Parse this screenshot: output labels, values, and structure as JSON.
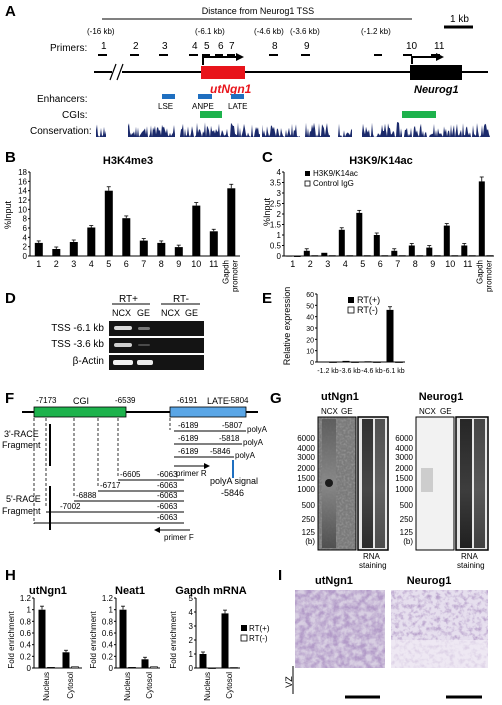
{
  "panels": {
    "A": {
      "letter": "A",
      "distance_title": "Distance from Neurog1 TSS",
      "distance_labels": [
        "(-16 kb)",
        "(-6.1 kb)",
        "(-4.6 kb)",
        "(-3.6 kb)",
        "(-1.2 kb)"
      ],
      "scale_bar": "1 kb",
      "primers_label": "Primers:",
      "primer_numbers": [
        "1",
        "2",
        "3",
        "4",
        "5",
        "6",
        "7",
        "8",
        "9",
        "10",
        "11"
      ],
      "gene_utngn1": "utNgn1",
      "gene_neurog1": "Neurog1",
      "enhancers_label": "Enhancers:",
      "enhancer_names": [
        "LSE",
        "ANPE",
        "LATE"
      ],
      "cgis_label": "CGIs:",
      "conservation_label": "Conservation:",
      "colors": {
        "utngn1": "#e8141b",
        "enhancer": "#1f6fc0",
        "cgi": "#1db24c",
        "conservation": "#1b2a6b"
      }
    },
    "B": {
      "letter": "B",
      "title": "H3K4me3",
      "ylabel": "%Input",
      "chart_data": {
        "type": "bar",
        "title": "H3K4me3",
        "ylabel": "%Input",
        "categories": [
          "1",
          "2",
          "3",
          "4",
          "5",
          "6",
          "7",
          "8",
          "9",
          "10",
          "11",
          "Gapdh promoter"
        ],
        "values": [
          2.8,
          1.5,
          3.0,
          6.1,
          14.0,
          8.1,
          3.3,
          2.8,
          1.9,
          10.8,
          5.3,
          14.5
        ],
        "ylim": [
          0,
          18
        ],
        "yticks": [
          0,
          2,
          4,
          6,
          8,
          10,
          12,
          14,
          16,
          18
        ]
      }
    },
    "C": {
      "letter": "C",
      "title": "H3K9/K14ac",
      "ylabel": "%Input",
      "legend": [
        "H3K9/K14ac",
        "Control IgG"
      ],
      "chart_data": {
        "type": "bar",
        "title": "H3K9/K14ac",
        "ylabel": "%Input",
        "categories": [
          "1",
          "2",
          "3",
          "4",
          "5",
          "6",
          "7",
          "8",
          "9",
          "10",
          "11",
          "Gapdh promoter"
        ],
        "series": [
          {
            "name": "H3K9/K14ac",
            "values": [
              0.0,
              0.25,
              0.15,
              1.25,
              2.05,
              1.0,
              0.25,
              0.5,
              0.4,
              1.45,
              0.5,
              3.55
            ]
          },
          {
            "name": "Control IgG",
            "values": [
              0.0,
              0.02,
              0.02,
              0.02,
              0.02,
              0.02,
              0.02,
              0.02,
              0.02,
              0.02,
              0.02,
              0.02
            ]
          }
        ],
        "ylim": [
          0,
          4
        ],
        "yticks": [
          0,
          0.5,
          1,
          1.5,
          2,
          2.5,
          3,
          3.5,
          4
        ]
      }
    },
    "D": {
      "letter": "D",
      "rt_pos": "RT+",
      "rt_neg": "RT-",
      "lanes": [
        "NCX",
        "GE",
        "NCX",
        "GE"
      ],
      "rows": [
        "TSS -6.1 kb",
        "TSS -3.6 kb",
        "β-Actin"
      ]
    },
    "E": {
      "letter": "E",
      "ylabel": "Relative expression",
      "legend": [
        "RT(+)",
        "RT(-)"
      ],
      "chart_data": {
        "type": "bar",
        "ylabel": "Relative expression",
        "categories": [
          "-1.2 kb",
          "-3.6 kb",
          "-4.6 kb",
          "-6.1 kb"
        ],
        "series": [
          {
            "name": "RT(+)",
            "values": [
              0.3,
              1.0,
              0.6,
              46.0
            ]
          },
          {
            "name": "RT(-)",
            "values": [
              0.1,
              0.1,
              0.1,
              0.1
            ]
          }
        ],
        "ylim": [
          0,
          60
        ],
        "yticks": [
          0,
          10,
          20,
          30,
          40,
          50,
          60
        ]
      }
    },
    "F": {
      "letter": "F",
      "coord_7173": "-7173",
      "cgi_label": "CGI",
      "coord_6539": "-6539",
      "coord_6191": "-6191",
      "late_label": "LATE",
      "coord_5804": "-5804",
      "race3_label_1": "3'-RACE",
      "race3_label_2": "Fragment",
      "race3_rows": [
        [
          "-6189",
          "-5807"
        ],
        [
          "-6189",
          "-5818"
        ],
        [
          "-6189",
          "-5846"
        ]
      ],
      "polya": "polyA",
      "primer_r": "primer R",
      "polya_signal": "polyA signal",
      "polya_signal_coord": "-5846",
      "race5_label_1": "5'-RACE",
      "race5_label_2": "Fragment",
      "race5_rows": [
        [
          "-6605",
          "-6063"
        ],
        [
          "-6717",
          "-6063"
        ],
        [
          "-6888",
          "-6063"
        ],
        [
          "-7002",
          "-6063"
        ],
        [
          "",
          "-6063"
        ]
      ],
      "primer_f": "primer F"
    },
    "G": {
      "letter": "G",
      "blot1_title": "utNgn1",
      "blot2_title": "Neurog1",
      "lanes": [
        "NCX",
        "GE"
      ],
      "markers": [
        "6000",
        "4000",
        "3000",
        "2000",
        "1500",
        "1000",
        "500",
        "250",
        "125",
        "(b)"
      ],
      "rna_staining_1": "RNA",
      "rna_staining_2": "staining"
    },
    "H": {
      "letter": "H",
      "ylabel": "Fold enrichment",
      "legend": [
        "RT(+)",
        "RT(-)"
      ],
      "chart_data": [
        {
          "type": "bar",
          "title": "utNgn1",
          "ylabel": "Fold enrichment",
          "categories": [
            "Nucleus",
            "Cytosol"
          ],
          "series": [
            {
              "name": "RT(+)",
              "values": [
                1.0,
                0.27
              ]
            },
            {
              "name": "RT(-)",
              "values": [
                0.01,
                0.02
              ]
            }
          ],
          "ylim": [
            0,
            1.2
          ],
          "yticks": [
            0,
            0.2,
            0.4,
            0.6,
            0.8,
            1,
            1.2
          ]
        },
        {
          "type": "bar",
          "title": "Neat1",
          "ylabel": "Fold enrichment",
          "categories": [
            "Nucleus",
            "Cytosol"
          ],
          "series": [
            {
              "name": "RT(+)",
              "values": [
                1.0,
                0.15
              ]
            },
            {
              "name": "RT(-)",
              "values": [
                0.01,
                0.02
              ]
            }
          ],
          "ylim": [
            0,
            1.2
          ],
          "yticks": [
            0,
            0.2,
            0.4,
            0.6,
            0.8,
            1,
            1.2
          ]
        },
        {
          "type": "bar",
          "title": "Gapdh mRNA",
          "ylabel": "Fold enrichment",
          "categories": [
            "Nucleus",
            "Cytosol"
          ],
          "series": [
            {
              "name": "RT(+)",
              "values": [
                1.0,
                3.9
              ]
            },
            {
              "name": "RT(-)",
              "values": [
                0.01,
                0.03
              ]
            }
          ],
          "ylim": [
            0,
            5
          ],
          "yticks": [
            0,
            1,
            2,
            3,
            4,
            5
          ]
        }
      ]
    },
    "I": {
      "letter": "I",
      "title1": "utNgn1",
      "title2": "Neurog1",
      "vz_label": "VZ"
    }
  }
}
